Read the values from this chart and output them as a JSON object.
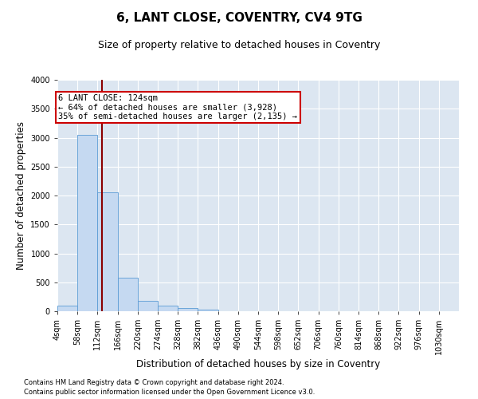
{
  "title": "6, LANT CLOSE, COVENTRY, CV4 9TG",
  "subtitle": "Size of property relative to detached houses in Coventry",
  "xlabel": "Distribution of detached houses by size in Coventry",
  "ylabel": "Number of detached properties",
  "property_size": 124,
  "bin_edges": [
    4,
    58,
    112,
    166,
    220,
    274,
    328,
    382,
    436,
    490,
    544,
    598,
    652,
    706,
    760,
    814,
    868,
    922,
    976,
    1030,
    1084
  ],
  "bin_counts": [
    100,
    3050,
    2050,
    575,
    175,
    100,
    50,
    30,
    0,
    0,
    0,
    0,
    0,
    0,
    0,
    0,
    0,
    0,
    0,
    0
  ],
  "bar_color": "#c5d9f1",
  "bar_edge_color": "#5b9bd5",
  "line_color": "#8b0000",
  "line_width": 1.5,
  "annotation_text": "6 LANT CLOSE: 124sqm\n← 64% of detached houses are smaller (3,928)\n35% of semi-detached houses are larger (2,135) →",
  "annotation_box_color": "#ffffff",
  "annotation_box_edge_color": "#cc0000",
  "background_color": "#dce6f1",
  "ylim": [
    0,
    4000
  ],
  "yticks": [
    0,
    500,
    1000,
    1500,
    2000,
    2500,
    3000,
    3500,
    4000
  ],
  "footnote1": "Contains HM Land Registry data © Crown copyright and database right 2024.",
  "footnote2": "Contains public sector information licensed under the Open Government Licence v3.0.",
  "title_fontsize": 11,
  "subtitle_fontsize": 9,
  "tick_fontsize": 7,
  "label_fontsize": 8.5
}
